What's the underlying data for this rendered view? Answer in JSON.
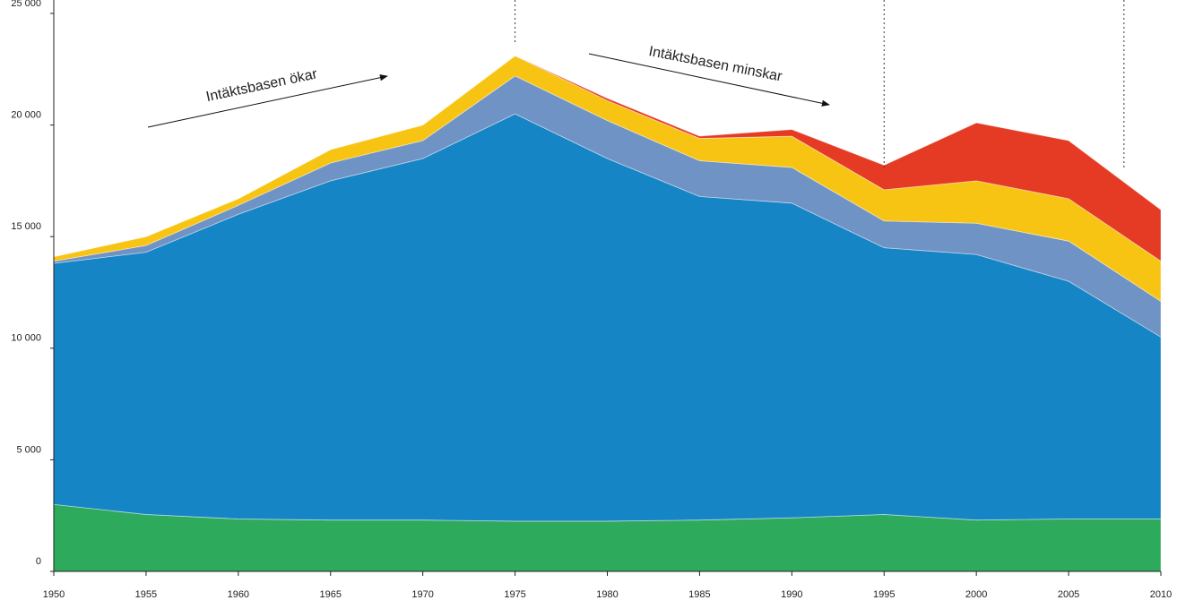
{
  "chart_data": {
    "type": "stacked_area",
    "x": [
      1950,
      1955,
      1960,
      1965,
      1970,
      1975,
      1980,
      1985,
      1990,
      1995,
      2000,
      2005,
      2010
    ],
    "series": [
      {
        "color": "#2eaa5c",
        "values": [
          3000,
          2550,
          2350,
          2300,
          2300,
          2250,
          2250,
          2300,
          2400,
          2550,
          2300,
          2350,
          2350
        ]
      },
      {
        "color": "#1685c6",
        "values": [
          10800,
          11750,
          13650,
          15200,
          16200,
          18250,
          16250,
          14500,
          14100,
          11950,
          11900,
          10650,
          8150
        ]
      },
      {
        "color": "#6f93c4",
        "values": [
          100,
          300,
          400,
          800,
          800,
          1700,
          1700,
          1600,
          1600,
          1200,
          1400,
          1800,
          1600
        ]
      },
      {
        "color": "#f8c414",
        "values": [
          200,
          400,
          300,
          600,
          700,
          900,
          900,
          1000,
          1400,
          1400,
          1900,
          1900,
          1800
        ]
      },
      {
        "color": "#e53b24",
        "values": [
          0,
          0,
          0,
          0,
          0,
          0,
          100,
          100,
          300,
          1100,
          2600,
          2600,
          2300
        ]
      }
    ],
    "xlim": [
      1950,
      2010
    ],
    "xticks": [
      1950,
      1955,
      1960,
      1965,
      1970,
      1975,
      1980,
      1985,
      1990,
      1995,
      2000,
      2005,
      2010
    ],
    "ylim": [
      0,
      25000
    ],
    "yticks": [
      0,
      {
        "value": 5000,
        "label": "5 000"
      },
      {
        "value": 10000,
        "label": "10 000"
      },
      {
        "value": 15000,
        "label": "15 000"
      },
      {
        "value": 20000,
        "label": "20 000"
      },
      {
        "value": 25000,
        "label": "25 000"
      }
    ],
    "vlines": [
      1975,
      1995,
      2008
    ],
    "annotations": [
      "Intäktsbasen ökar",
      "Intäktsbasen minskar"
    ]
  }
}
